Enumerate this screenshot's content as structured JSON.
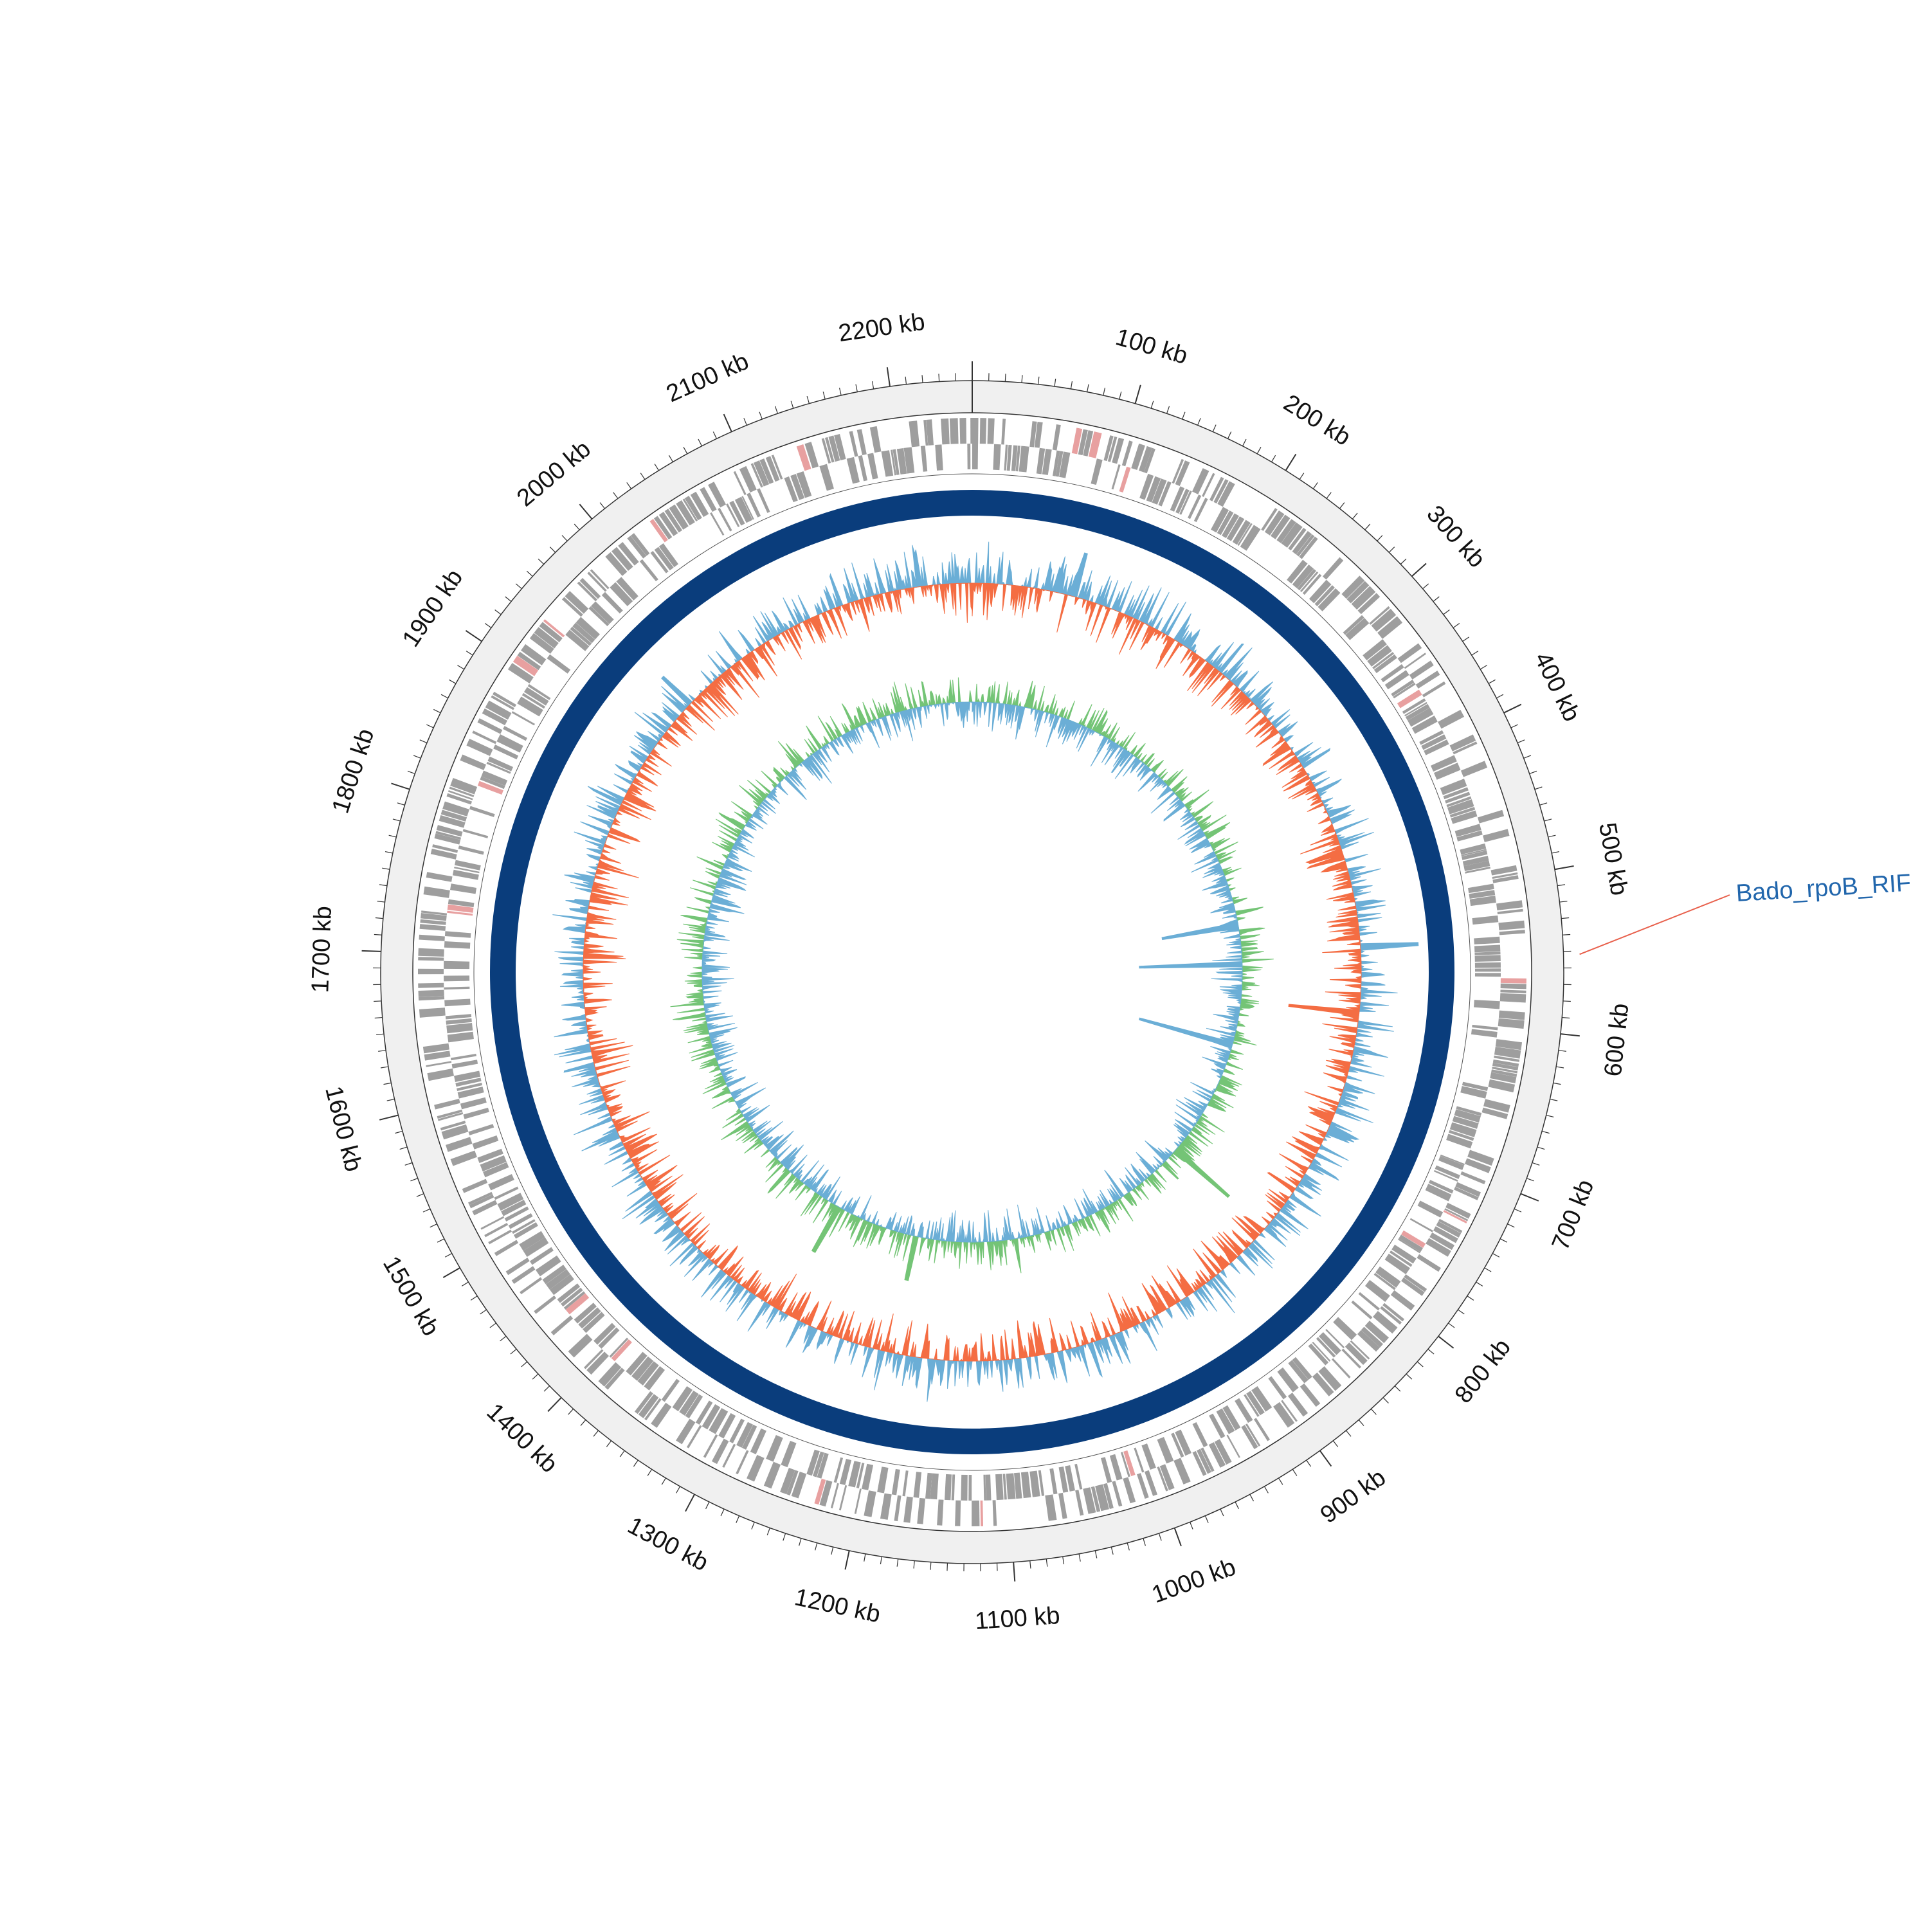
{
  "genome": {
    "length_kb": 2250,
    "tick_labels": [
      "100 kb",
      "200 kb",
      "300 kb",
      "400 kb",
      "500 kb",
      "600 kb",
      "700 kb",
      "800 kb",
      "900 kb",
      "1000 kb",
      "1100 kb",
      "1200 kb",
      "1300 kb",
      "1400 kb",
      "1500 kb",
      "1600 kb",
      "1700 kb",
      "1800 kb",
      "1900 kb",
      "2000 kb",
      "2100 kb",
      "2200 kb"
    ],
    "tick_positions_kb": [
      100,
      200,
      300,
      400,
      500,
      600,
      700,
      800,
      900,
      1000,
      1100,
      1200,
      1300,
      1400,
      1500,
      1600,
      1700,
      1800,
      1900,
      2000,
      2100,
      2200
    ],
    "minor_tick_step_kb": 10
  },
  "annotation": {
    "label": "Bado_rpoB_RIF",
    "position_kb": 552,
    "label_color": "#2166ac",
    "line_color": "#e8604c"
  },
  "colors": {
    "outer_band": "#f0f0f0",
    "gene": "#9e9e9e",
    "gene_highlight": "#e8a0a0",
    "coverage_ring": "#0a3d7c",
    "gc_content_positive": "#6baed6",
    "gc_content_negative": "#f46d43",
    "gc_skew_positive": "#74c476",
    "gc_skew_negative": "#6baed6"
  },
  "tracks": [
    {
      "name": "genes",
      "type": "feature"
    },
    {
      "name": "coverage",
      "type": "band"
    },
    {
      "name": "gc_content",
      "type": "signal"
    },
    {
      "name": "gc_skew",
      "type": "signal"
    }
  ]
}
